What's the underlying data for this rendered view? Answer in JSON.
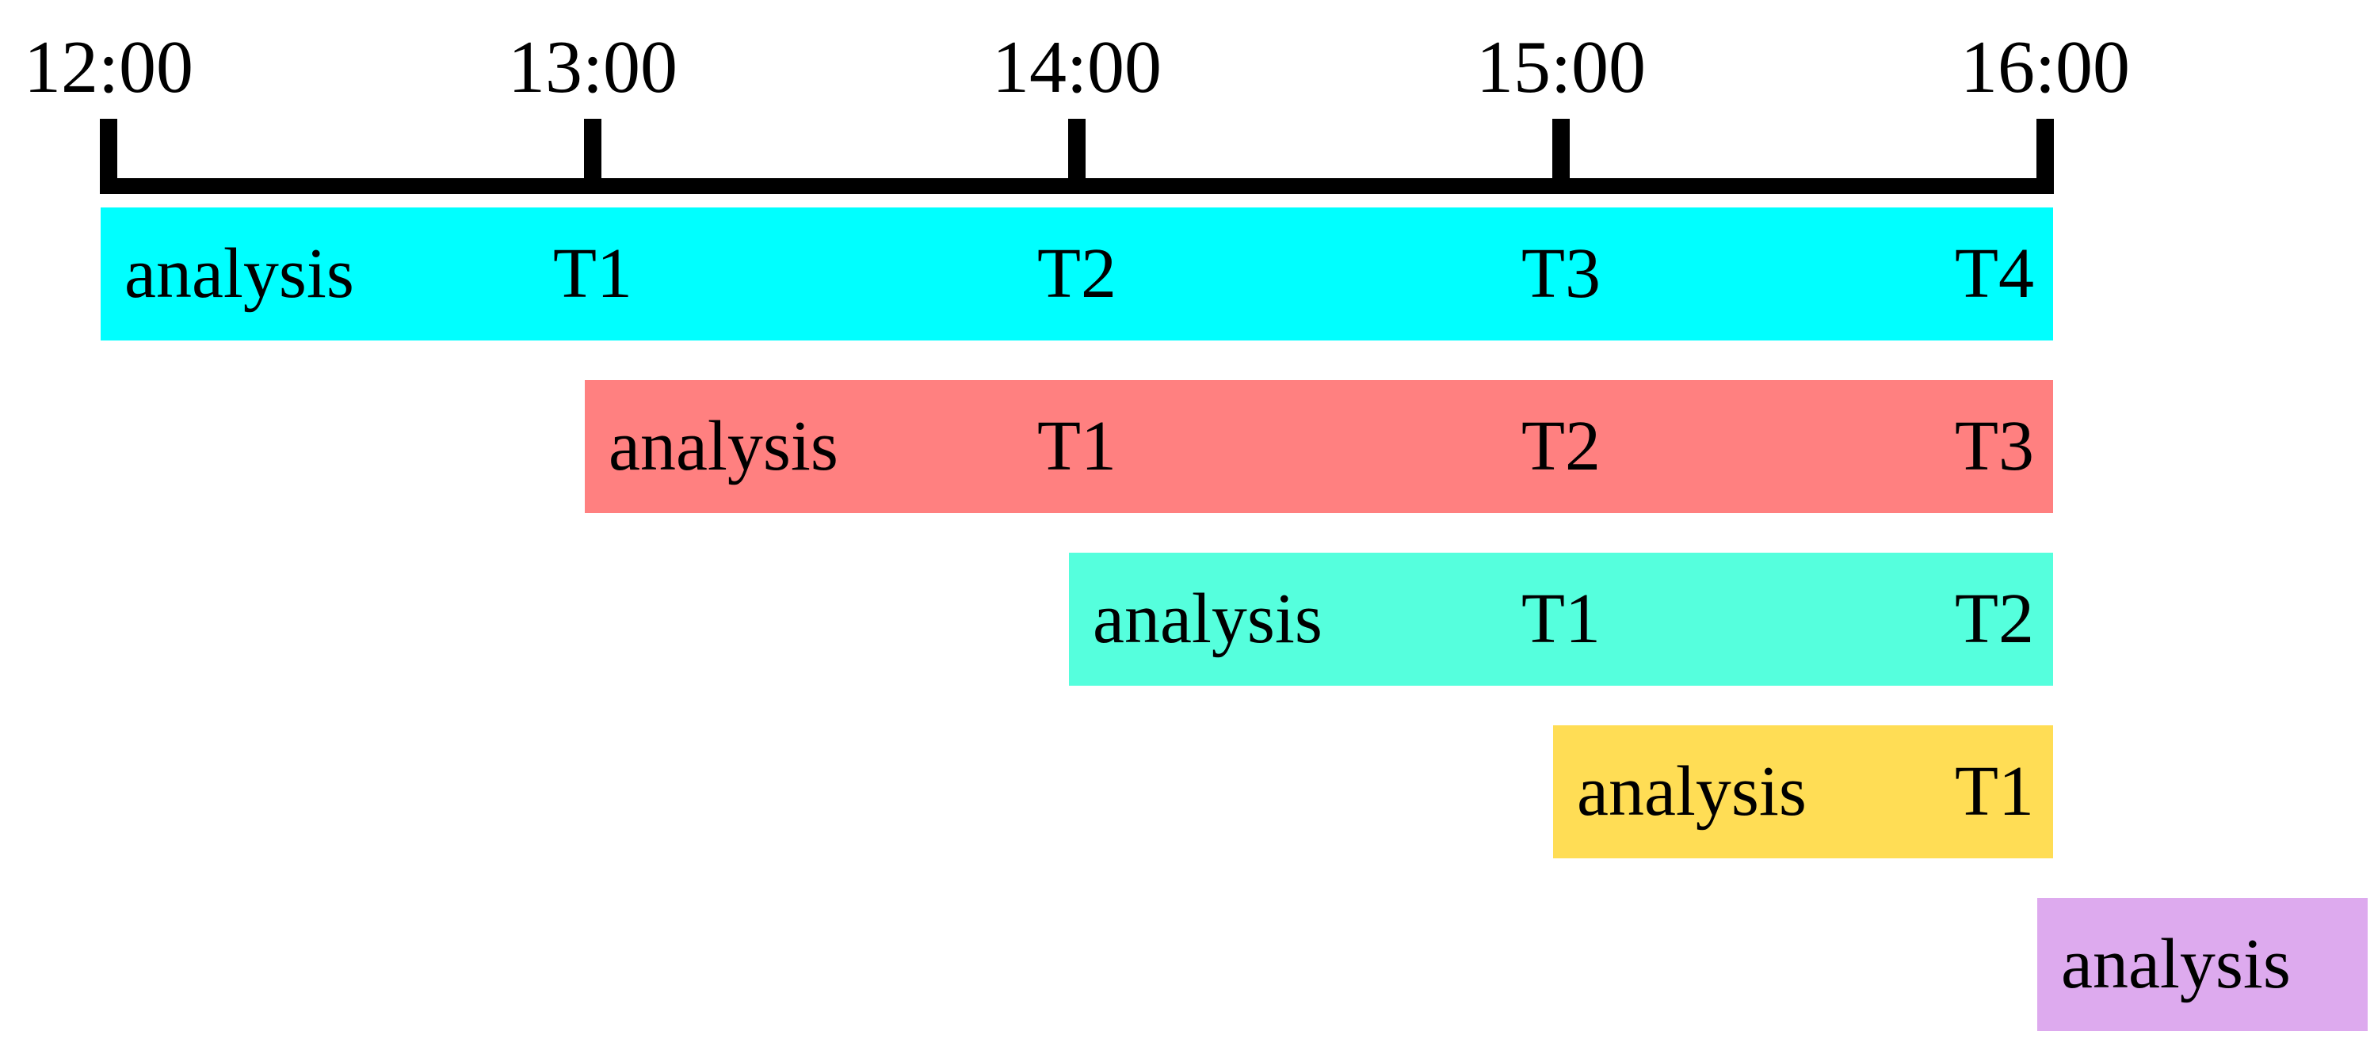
{
  "timeline": {
    "ticks": [
      "12:00",
      "13:00",
      "14:00",
      "15:00",
      "16:00"
    ]
  },
  "rows": [
    {
      "start_hour_index": 0,
      "end_hour_index": 4,
      "color": "#00FFFF",
      "labels": [
        "analysis",
        "T1",
        "T2",
        "T3",
        "T4"
      ]
    },
    {
      "start_hour_index": 1,
      "end_hour_index": 4,
      "color": "#FF8080",
      "labels": [
        "analysis",
        "T1",
        "T2",
        "T3"
      ]
    },
    {
      "start_hour_index": 2,
      "end_hour_index": 4,
      "color": "#55FFDD",
      "labels": [
        "analysis",
        "T1",
        "T2"
      ]
    },
    {
      "start_hour_index": 3,
      "end_hour_index": 4,
      "color": "#FFDD55",
      "labels": [
        "analysis",
        "T1"
      ]
    },
    {
      "start_hour_index": 4,
      "end_hour_index": 4.65,
      "color": "#DDAAEE",
      "labels": [
        "analysis"
      ]
    }
  ]
}
